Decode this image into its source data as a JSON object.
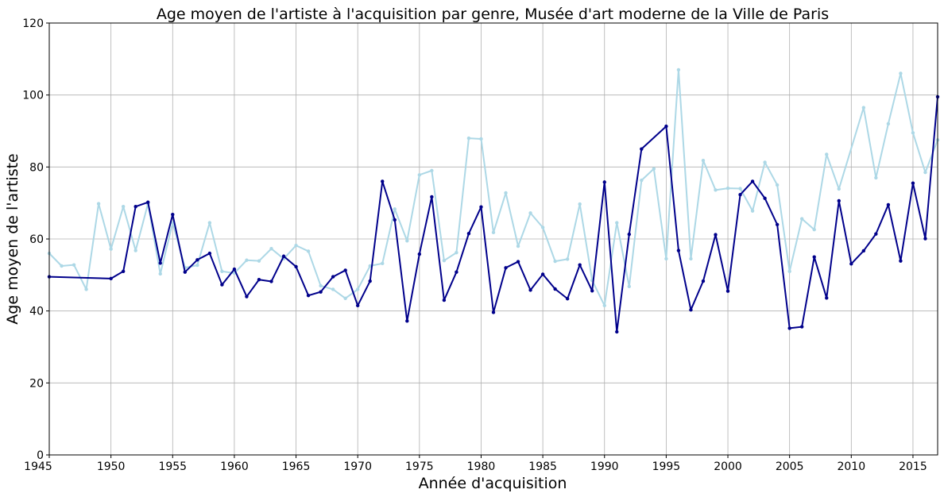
{
  "chart_data": {
    "type": "line",
    "title": "Age moyen de l'artiste à l'acquisition par genre, Musée d'art moderne de la Ville de Paris",
    "xlabel": "Année d'acquisition",
    "ylabel": "Age moyen de l'artiste",
    "xlim": [
      1945,
      2017
    ],
    "ylim": [
      0,
      120
    ],
    "xticks": [
      1945,
      1950,
      1955,
      1960,
      1965,
      1970,
      1975,
      1980,
      1985,
      1990,
      1995,
      2000,
      2005,
      2010,
      2015
    ],
    "yticks": [
      0,
      20,
      40,
      60,
      80,
      100,
      120
    ],
    "grid": true,
    "series": [
      {
        "color": "#add8e6",
        "points": [
          [
            1945,
            56
          ],
          [
            1946,
            52.5
          ],
          [
            1947,
            52.8
          ],
          [
            1948,
            46
          ],
          [
            1949,
            69.8
          ],
          [
            1950,
            57.2
          ],
          [
            1951,
            69
          ],
          [
            1952,
            56.8
          ],
          [
            1953,
            69.8
          ],
          [
            1954,
            50.3
          ],
          [
            1955,
            64.5
          ],
          [
            1956,
            52
          ],
          [
            1957,
            52.7
          ],
          [
            1958,
            64.5
          ],
          [
            1959,
            51
          ],
          [
            1960,
            50.5
          ],
          [
            1961,
            54.1
          ],
          [
            1962,
            53.9
          ],
          [
            1963,
            57.3
          ],
          [
            1964,
            54.5
          ],
          [
            1965,
            58.2
          ],
          [
            1966,
            56.6
          ],
          [
            1967,
            47
          ],
          [
            1968,
            46
          ],
          [
            1969,
            43.5
          ],
          [
            1970,
            46
          ],
          [
            1971,
            52.5
          ],
          [
            1972,
            53.2
          ],
          [
            1973,
            68.3
          ],
          [
            1974,
            59.5
          ],
          [
            1975,
            77.8
          ],
          [
            1976,
            79
          ],
          [
            1977,
            54
          ],
          [
            1978,
            56.2
          ],
          [
            1979,
            88
          ],
          [
            1980,
            87.8
          ],
          [
            1981,
            61.8
          ],
          [
            1982,
            72.8
          ],
          [
            1983,
            58
          ],
          [
            1984,
            67.2
          ],
          [
            1985,
            63.2
          ],
          [
            1986,
            53.8
          ],
          [
            1987,
            54.4
          ],
          [
            1988,
            69.7
          ],
          [
            1989,
            48.5
          ],
          [
            1990,
            41.5
          ],
          [
            1991,
            64.5
          ],
          [
            1992,
            46.8
          ],
          [
            1993,
            76.3
          ],
          [
            1994,
            79.5
          ],
          [
            1995,
            54.5
          ],
          [
            1996,
            107
          ],
          [
            1997,
            54.5
          ],
          [
            1998,
            81.8
          ],
          [
            1999,
            73.6
          ],
          [
            2000,
            74.1
          ],
          [
            2001,
            74
          ],
          [
            2002,
            67.8
          ],
          [
            2003,
            81.3
          ],
          [
            2004,
            75
          ],
          [
            2005,
            51
          ],
          [
            2006,
            65.6
          ],
          [
            2007,
            62.6
          ],
          [
            2008,
            83.5
          ],
          [
            2009,
            73.9
          ],
          [
            2011,
            96.5
          ],
          [
            2012,
            77
          ],
          [
            2013,
            92
          ],
          [
            2014,
            106
          ],
          [
            2015,
            89.5
          ],
          [
            2016,
            78.5
          ],
          [
            2017,
            87.5
          ]
        ]
      },
      {
        "color": "#00008b",
        "points": [
          [
            1945,
            49.5
          ],
          [
            1950,
            49
          ],
          [
            1951,
            51
          ],
          [
            1952,
            69
          ],
          [
            1953,
            70.2
          ],
          [
            1954,
            53.3
          ],
          [
            1955,
            66.8
          ],
          [
            1956,
            50.8
          ],
          [
            1957,
            54.2
          ],
          [
            1958,
            56
          ],
          [
            1959,
            47.3
          ],
          [
            1960,
            51.6
          ],
          [
            1961,
            44
          ],
          [
            1962,
            48.7
          ],
          [
            1963,
            48.2
          ],
          [
            1964,
            55.2
          ],
          [
            1965,
            52.3
          ],
          [
            1966,
            44.3
          ],
          [
            1967,
            45.3
          ],
          [
            1968,
            49.5
          ],
          [
            1969,
            51.3
          ],
          [
            1970,
            41.5
          ],
          [
            1971,
            48.3
          ],
          [
            1972,
            76
          ],
          [
            1973,
            65.3
          ],
          [
            1974,
            37.2
          ],
          [
            1975,
            55.8
          ],
          [
            1976,
            71.7
          ],
          [
            1977,
            43
          ],
          [
            1978,
            50.8
          ],
          [
            1979,
            61.5
          ],
          [
            1980,
            68.9
          ],
          [
            1981,
            39.6
          ],
          [
            1982,
            52
          ],
          [
            1983,
            53.7
          ],
          [
            1984,
            45.8
          ],
          [
            1985,
            50.2
          ],
          [
            1986,
            46.1
          ],
          [
            1987,
            43.4
          ],
          [
            1988,
            52.8
          ],
          [
            1989,
            45.6
          ],
          [
            1990,
            75.8
          ],
          [
            1991,
            34.2
          ],
          [
            1992,
            61.3
          ],
          [
            1993,
            85
          ],
          [
            1995,
            91.3
          ],
          [
            1996,
            56.8
          ],
          [
            1997,
            40.3
          ],
          [
            1998,
            48.3
          ],
          [
            1999,
            61.2
          ],
          [
            2000,
            45.5
          ],
          [
            2001,
            72.3
          ],
          [
            2002,
            76
          ],
          [
            2003,
            71.3
          ],
          [
            2004,
            64
          ],
          [
            2005,
            35.2
          ],
          [
            2006,
            35.6
          ],
          [
            2007,
            55
          ],
          [
            2008,
            43.6
          ],
          [
            2009,
            70.6
          ],
          [
            2010,
            53.1
          ],
          [
            2011,
            56.7
          ],
          [
            2012,
            61.4
          ],
          [
            2013,
            69.5
          ],
          [
            2014,
            53.9
          ],
          [
            2015,
            75.5
          ],
          [
            2016,
            60.1
          ],
          [
            2017,
            99.5
          ]
        ]
      }
    ]
  }
}
